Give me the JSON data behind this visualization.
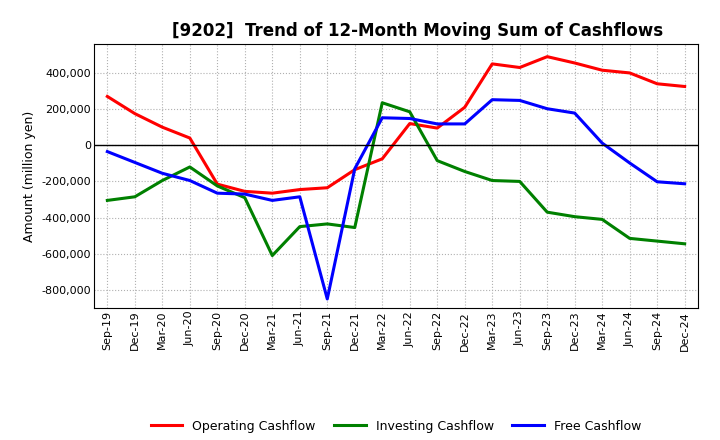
{
  "title": "[9202]  Trend of 12-Month Moving Sum of Cashflows",
  "ylabel": "Amount (million yen)",
  "x_labels": [
    "Sep-19",
    "Dec-19",
    "Mar-20",
    "Jun-20",
    "Sep-20",
    "Dec-20",
    "Mar-21",
    "Jun-21",
    "Sep-21",
    "Dec-21",
    "Mar-22",
    "Jun-22",
    "Sep-22",
    "Dec-22",
    "Mar-23",
    "Jun-23",
    "Sep-23",
    "Dec-23",
    "Mar-24",
    "Jun-24",
    "Sep-24",
    "Dec-24"
  ],
  "operating": [
    270000,
    175000,
    100000,
    40000,
    -215000,
    -255000,
    -265000,
    -245000,
    -235000,
    -135000,
    -75000,
    120000,
    95000,
    210000,
    450000,
    430000,
    490000,
    455000,
    415000,
    400000,
    340000,
    325000
  ],
  "investing": [
    -305000,
    -285000,
    -195000,
    -120000,
    -225000,
    -290000,
    -610000,
    -450000,
    -435000,
    -455000,
    235000,
    185000,
    -85000,
    -145000,
    -195000,
    -200000,
    -370000,
    -395000,
    -410000,
    -515000,
    -530000,
    -545000
  ],
  "free": [
    -35000,
    -95000,
    -155000,
    -195000,
    -265000,
    -270000,
    -305000,
    -285000,
    -850000,
    -130000,
    152000,
    148000,
    118000,
    118000,
    252000,
    248000,
    202000,
    178000,
    12000,
    -98000,
    -202000,
    -213000
  ],
  "operating_color": "#ff0000",
  "investing_color": "#008000",
  "free_color": "#0000ff",
  "ylim": [
    -900000,
    560000
  ],
  "yticks": [
    -800000,
    -600000,
    -400000,
    -200000,
    0,
    200000,
    400000
  ],
  "background_color": "#ffffff",
  "grid_color": "#b0b0b0",
  "line_width": 2.2,
  "title_fontsize": 12,
  "ylabel_fontsize": 9,
  "tick_fontsize": 8,
  "legend_fontsize": 9
}
